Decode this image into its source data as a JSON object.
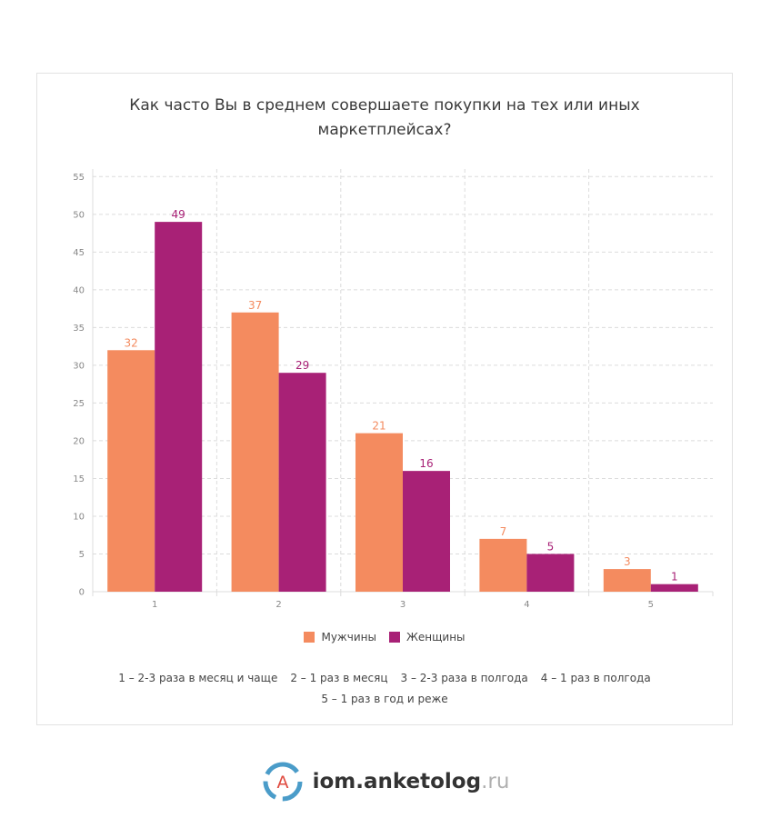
{
  "chart_data": {
    "type": "bar",
    "title": [
      "Как часто Вы в среднем совершаете покупки на тех или иных",
      "маркетплейсах?"
    ],
    "categories": [
      "1",
      "2",
      "3",
      "4",
      "5"
    ],
    "series": [
      {
        "name": "Мужчины",
        "values": [
          32,
          37,
          21,
          7,
          3
        ],
        "color": "#f48b5f"
      },
      {
        "name": "Женщины",
        "values": [
          49,
          29,
          16,
          5,
          1
        ],
        "color": "#a82176"
      }
    ],
    "ylim": [
      0,
      56
    ],
    "yticks": [
      0,
      5,
      10,
      15,
      20,
      25,
      30,
      35,
      40,
      45,
      50,
      55
    ],
    "grid": true,
    "legend": "bottom",
    "notes": [
      [
        "1 – 2-3 раза в месяц и чаще",
        "2 – 1 раз в месяц",
        "3 – 2-3 раза в полгода",
        "4 – 1 раз в полгода"
      ],
      [
        "5 – 1 раз в год и реже"
      ]
    ]
  },
  "brand": {
    "name": "iom.anketolog",
    "tld": ".ru",
    "logo_letter": "A"
  }
}
